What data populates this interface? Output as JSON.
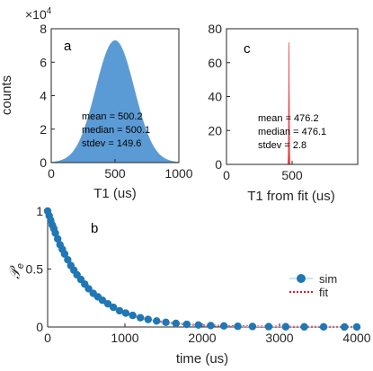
{
  "chart_data": [
    {
      "type": "histogram",
      "panel_label": "a",
      "exponent_label": "×10",
      "exponent_power": "4",
      "xlabel": "T1 (us)",
      "ylabel": "counts",
      "xlim": [
        0,
        1000
      ],
      "ylim": [
        0,
        8
      ],
      "xticks": [
        0,
        500,
        1000
      ],
      "yticks": [
        0,
        2,
        4,
        6,
        8
      ],
      "color": "#5b9bd5",
      "distribution": {
        "shape": "gaussian",
        "center": 500,
        "sigma": 150,
        "peak": 7.3
      },
      "stats": [
        "mean = 500.2",
        "median = 500.1",
        "stdev = 149.6"
      ]
    },
    {
      "type": "histogram",
      "panel_label": "c",
      "xlabel": "T1 from fit (us)",
      "ylabel": "",
      "xlim": [
        0,
        1000
      ],
      "ylim": [
        0,
        80
      ],
      "xticks": [
        0,
        500
      ],
      "yticks": [
        0,
        20,
        40,
        60,
        80
      ],
      "color": "#e8474b",
      "distribution": {
        "shape": "gaussian",
        "center": 476,
        "sigma": 3,
        "peak": 72
      },
      "stats": [
        "mean = 476.2",
        "median = 476.1",
        "stdev = 2.8"
      ]
    },
    {
      "type": "line",
      "panel_label": "b",
      "xlabel": "time (us)",
      "ylabel": "𝒫",
      "ylabel_sub": "e",
      "xlim": [
        0,
        4000
      ],
      "ylim": [
        0,
        1
      ],
      "xticks": [
        0,
        1000,
        2000,
        3000,
        4000
      ],
      "yticks": [
        0,
        0.5,
        1
      ],
      "legend_position": "right",
      "series": [
        {
          "name": "sim",
          "style": "markers",
          "color": "#1f77b4",
          "x": [
            0,
            20,
            40,
            60,
            80,
            100,
            130,
            160,
            190,
            220,
            260,
            300,
            340,
            380,
            430,
            480,
            530,
            590,
            650,
            710,
            780,
            850,
            930,
            1010,
            1100,
            1200,
            1300,
            1410,
            1530,
            1660,
            1800,
            1950,
            2110,
            2280,
            2460,
            2650,
            2860,
            3080,
            3320,
            3570,
            3840,
            4000
          ],
          "y": [
            1.0,
            0.96,
            0.92,
            0.88,
            0.85,
            0.81,
            0.76,
            0.71,
            0.67,
            0.63,
            0.58,
            0.53,
            0.49,
            0.45,
            0.41,
            0.37,
            0.33,
            0.29,
            0.26,
            0.23,
            0.2,
            0.17,
            0.14,
            0.12,
            0.1,
            0.08,
            0.065,
            0.052,
            0.04,
            0.031,
            0.023,
            0.017,
            0.012,
            0.009,
            0.006,
            0.004,
            0.003,
            0.002,
            0.001,
            0.001,
            0.0,
            0.0
          ]
        },
        {
          "name": "fit",
          "style": "dotted-line",
          "color": "#e8101a",
          "T1": 476.2
        }
      ]
    }
  ]
}
